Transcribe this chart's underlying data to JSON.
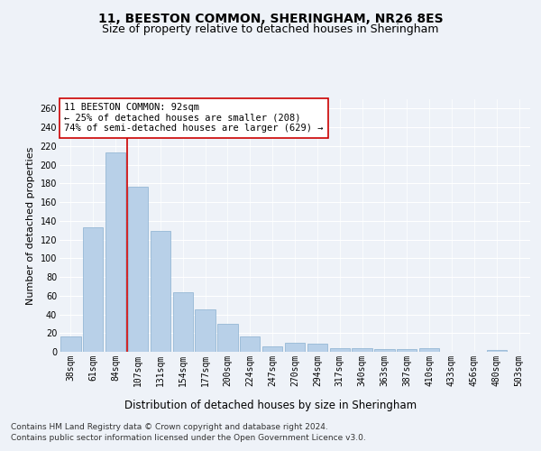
{
  "title1": "11, BEESTON COMMON, SHERINGHAM, NR26 8ES",
  "title2": "Size of property relative to detached houses in Sheringham",
  "xlabel": "Distribution of detached houses by size in Sheringham",
  "ylabel": "Number of detached properties",
  "categories": [
    "38sqm",
    "61sqm",
    "84sqm",
    "107sqm",
    "131sqm",
    "154sqm",
    "177sqm",
    "200sqm",
    "224sqm",
    "247sqm",
    "270sqm",
    "294sqm",
    "317sqm",
    "340sqm",
    "363sqm",
    "387sqm",
    "410sqm",
    "433sqm",
    "456sqm",
    "480sqm",
    "503sqm"
  ],
  "values": [
    16,
    133,
    213,
    176,
    129,
    64,
    45,
    30,
    16,
    6,
    10,
    9,
    4,
    4,
    3,
    3,
    4,
    0,
    0,
    2,
    0
  ],
  "bar_color": "#b8d0e8",
  "bar_edge_color": "#8ab0d0",
  "vline_color": "#cc0000",
  "vline_index": 2.5,
  "annotation_text": "11 BEESTON COMMON: 92sqm\n← 25% of detached houses are smaller (208)\n74% of semi-detached houses are larger (629) →",
  "annotation_box_color": "#ffffff",
  "annotation_box_edge_color": "#cc0000",
  "ylim": [
    0,
    270
  ],
  "yticks": [
    0,
    20,
    40,
    60,
    80,
    100,
    120,
    140,
    160,
    180,
    200,
    220,
    240,
    260
  ],
  "background_color": "#eef2f8",
  "grid_color": "#ffffff",
  "footer_line1": "Contains HM Land Registry data © Crown copyright and database right 2024.",
  "footer_line2": "Contains public sector information licensed under the Open Government Licence v3.0.",
  "title1_fontsize": 10,
  "title2_fontsize": 9,
  "xlabel_fontsize": 8.5,
  "ylabel_fontsize": 8,
  "tick_fontsize": 7,
  "annotation_fontsize": 7.5,
  "footer_fontsize": 6.5
}
